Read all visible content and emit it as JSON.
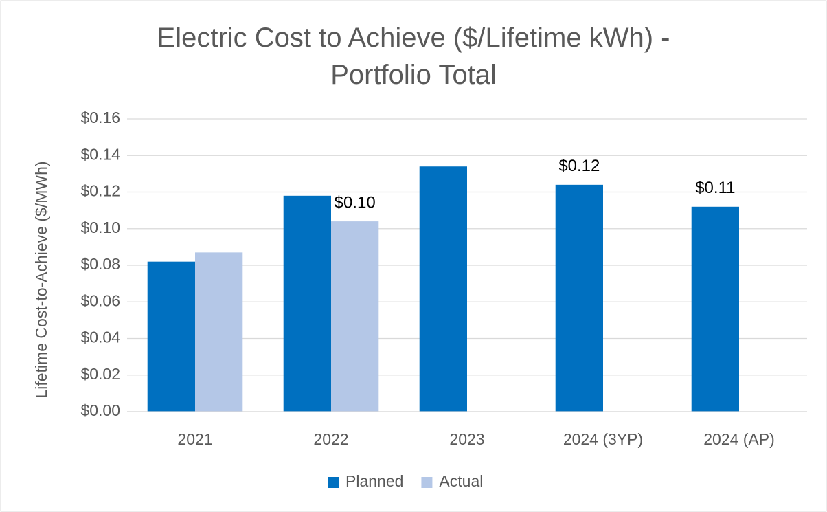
{
  "chart_data": {
    "type": "bar",
    "title": "Electric Cost to Achieve ($/Lifetime kWh) - Portfolio Total",
    "y_label": "Lifetime Cost-to-Achieve ($/MWh)",
    "categories": [
      "2021",
      "2022",
      "2023",
      "2024 (3YP)",
      "2024 (AP)"
    ],
    "series": [
      {
        "name": "Planned",
        "color": "#0070c0",
        "values": [
          0.082,
          0.118,
          0.134,
          0.124,
          0.112
        ],
        "value_labels": [
          null,
          null,
          null,
          "$0.12",
          "$0.11"
        ]
      },
      {
        "name": "Actual",
        "color": "#b4c7e7",
        "values": [
          0.087,
          0.104,
          null,
          null,
          null
        ],
        "value_labels": [
          null,
          "$0.10",
          null,
          null,
          null
        ]
      }
    ],
    "ylim": [
      0,
      0.16
    ],
    "yticks": [
      {
        "value": 0,
        "label": "$0.00"
      },
      {
        "value": 0.02,
        "label": "$0.02"
      },
      {
        "value": 0.04,
        "label": "$0.04"
      },
      {
        "value": 0.06,
        "label": "$0.06"
      },
      {
        "value": 0.08,
        "label": "$0.08"
      },
      {
        "value": 0.1,
        "label": "$0.10"
      },
      {
        "value": 0.12,
        "label": "$0.12"
      },
      {
        "value": 0.14,
        "label": "$0.14"
      },
      {
        "value": 0.16,
        "label": "$0.16"
      }
    ],
    "grid": true,
    "legend": "bottom"
  }
}
